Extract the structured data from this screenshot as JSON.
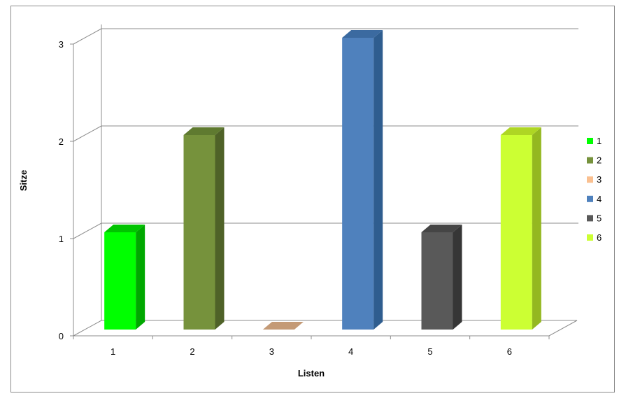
{
  "chart_data": {
    "type": "bar",
    "categories": [
      "1",
      "2",
      "3",
      "4",
      "5",
      "6"
    ],
    "values": [
      1,
      2,
      0,
      3,
      1,
      2
    ],
    "xlabel": "Listen",
    "ylabel": "Sitze",
    "ylim": [
      0,
      3
    ],
    "yticks": [
      "0",
      "1",
      "2",
      "3"
    ],
    "grid": true,
    "three_d": true,
    "legend": {
      "placement": "right",
      "entries": [
        "1",
        "2",
        "3",
        "4",
        "5",
        "6"
      ]
    },
    "colors": {
      "front": [
        "#00ff00",
        "#76923c",
        "#fac090",
        "#4f81bd",
        "#595959",
        "#ccff33"
      ],
      "side": [
        "#00a800",
        "#4f6228",
        "#c0906a",
        "#2f5d8f",
        "#363636",
        "#94b820"
      ],
      "top": [
        "#00c400",
        "#5f7a30",
        "#c49a76",
        "#3b6aa0",
        "#454545",
        "#aed624"
      ],
      "grid": "#8c8c8c"
    }
  }
}
